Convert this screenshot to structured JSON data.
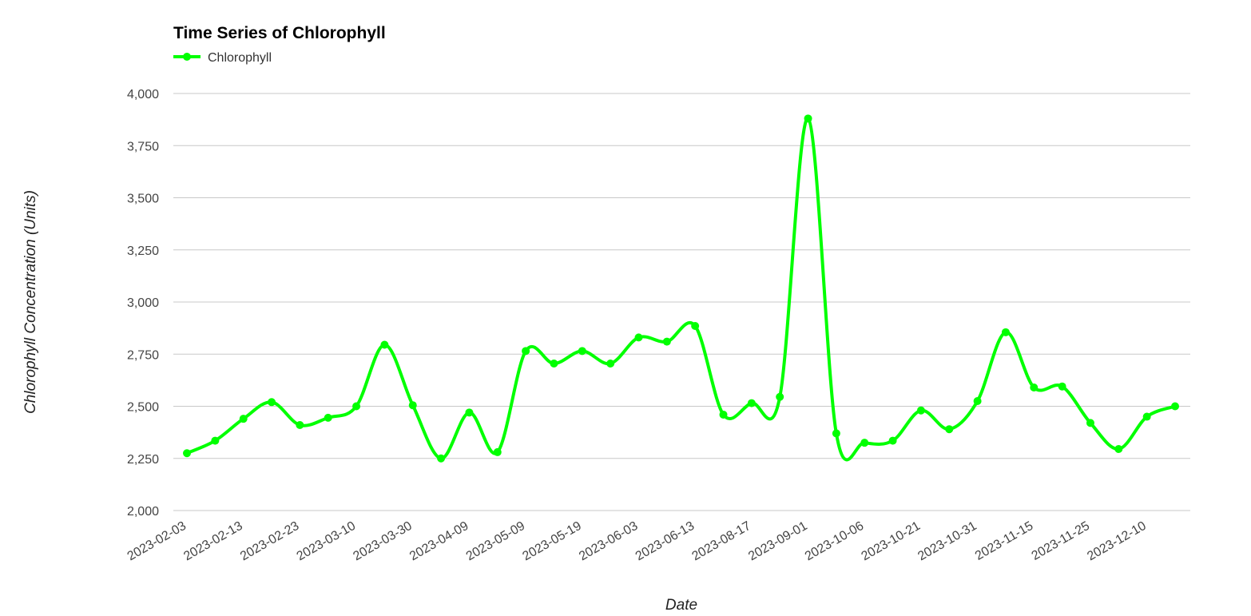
{
  "chart_data": {
    "type": "line",
    "title": "Time Series of Chlorophyll",
    "xlabel": "Date",
    "ylabel": "Chlorophyll Concentration (Units)",
    "ylim": [
      2000,
      4000
    ],
    "yticks": [
      "2,000",
      "2,250",
      "2,500",
      "2,750",
      "3,000",
      "3,250",
      "3,500",
      "3,750",
      "4,000"
    ],
    "ytick_values": [
      2000,
      2250,
      2500,
      2750,
      3000,
      3250,
      3500,
      3750,
      4000
    ],
    "xtick_labels": [
      "2023-02-03",
      "2023-02-13",
      "2023-02-23",
      "2023-03-10",
      "2023-03-30",
      "2023-04-09",
      "2023-05-09",
      "2023-05-19",
      "2023-06-03",
      "2023-06-13",
      "2023-08-17",
      "2023-09-01",
      "2023-10-06",
      "2023-10-21",
      "2023-10-31",
      "2023-11-15",
      "2023-11-25",
      "2023-12-10"
    ],
    "grid": "horizontal",
    "legend": "top-left",
    "series": [
      {
        "name": "Chlorophyll",
        "color": "#00ff00",
        "values": [
          2275,
          2335,
          2440,
          2520,
          2410,
          2445,
          2500,
          2795,
          2505,
          2250,
          2470,
          2280,
          2765,
          2705,
          2765,
          2705,
          2830,
          2810,
          2885,
          2460,
          2515,
          2545,
          3880,
          2370,
          2325,
          2335,
          2480,
          2390,
          2525,
          2855,
          2590,
          2595,
          2420,
          2295,
          2450,
          2500
        ]
      }
    ]
  }
}
